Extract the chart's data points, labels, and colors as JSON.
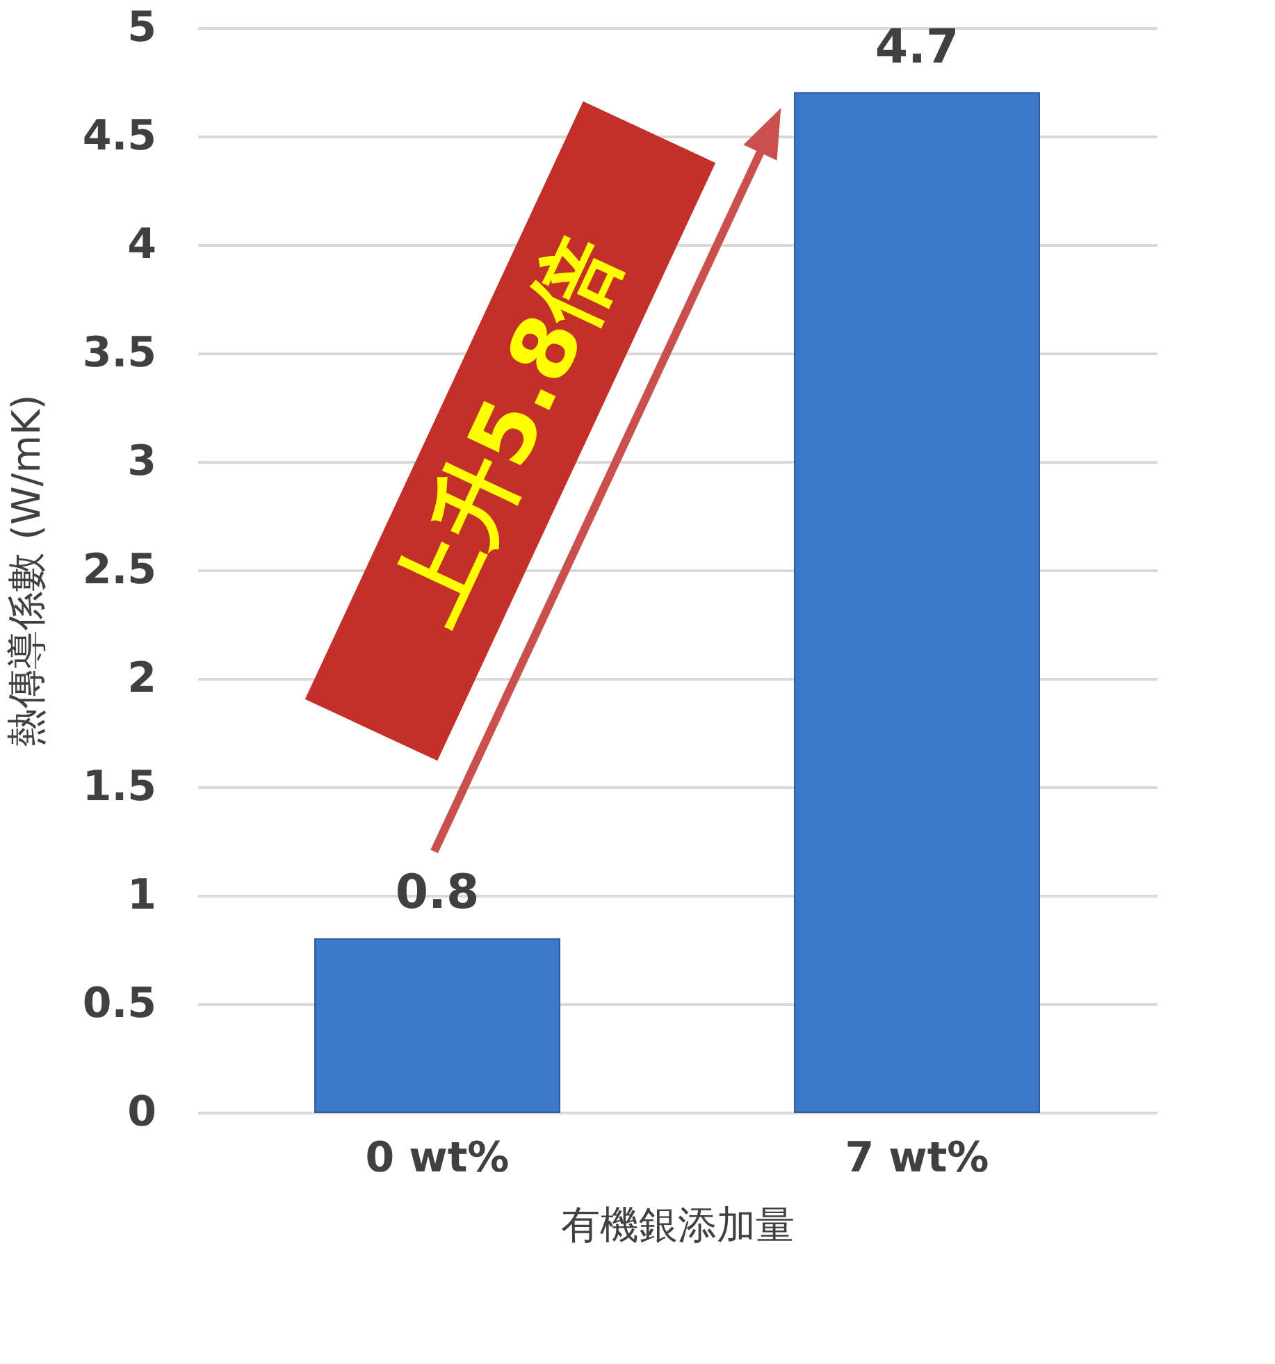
{
  "chart_data": {
    "type": "bar",
    "categories": [
      "0 wt%",
      "7 wt%"
    ],
    "values": [
      0.8,
      4.7
    ],
    "color": "#3b78c8",
    "ylim": [
      0,
      5
    ],
    "yticks": [
      0,
      0.5,
      1,
      1.5,
      2,
      2.5,
      3,
      3.5,
      4,
      4.5,
      5
    ],
    "grid": "y",
    "data_labels": true,
    "xlabel": "有機銀添加量",
    "ylabel": "熱傳導係數 (W/mK)",
    "annotations": [
      "上升5.8倍"
    ]
  }
}
